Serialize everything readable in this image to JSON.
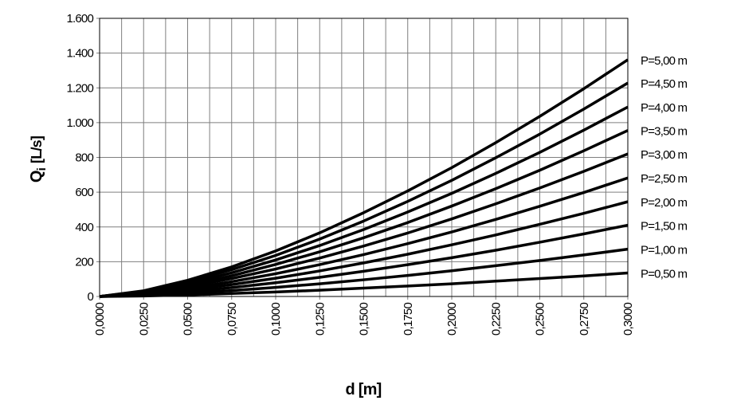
{
  "chart_data": {
    "type": "line",
    "ylabel": {
      "symbol": "Q",
      "subscript": "i",
      "unit": "[L/s]"
    },
    "xlabel": "d [m]",
    "x": [
      0,
      0.025,
      0.05,
      0.075,
      0.1,
      0.125,
      0.15,
      0.175,
      0.2,
      0.225,
      0.25,
      0.275,
      0.3
    ],
    "xlim": [
      0,
      0.3
    ],
    "xticks": [
      {
        "value": 0,
        "label": "0,0000"
      },
      {
        "value": 0.025,
        "label": "0,0250"
      },
      {
        "value": 0.05,
        "label": "0,0500"
      },
      {
        "value": 0.075,
        "label": "0,0750"
      },
      {
        "value": 0.1,
        "label": "0,1000"
      },
      {
        "value": 0.125,
        "label": "0,1250"
      },
      {
        "value": 0.15,
        "label": "0,1500"
      },
      {
        "value": 0.175,
        "label": "0,1750"
      },
      {
        "value": 0.2,
        "label": "0,2000"
      },
      {
        "value": 0.225,
        "label": "0,2250"
      },
      {
        "value": 0.25,
        "label": "0,2500"
      },
      {
        "value": 0.275,
        "label": "0,2750"
      },
      {
        "value": 0.3,
        "label": "0,3000"
      }
    ],
    "xminor_grid": [
      0.0125,
      0.0375,
      0.0625,
      0.0875,
      0.1125,
      0.1375,
      0.1625,
      0.1875,
      0.2125,
      0.2375,
      0.2625,
      0.2875
    ],
    "ylim": [
      0,
      1600
    ],
    "yticks": [
      0,
      200,
      400,
      600,
      800,
      {
        "value": 1000,
        "label": "1.000"
      },
      {
        "value": 1200,
        "label": "1.200"
      },
      {
        "value": 1400,
        "label": "1.400"
      },
      {
        "value": 1600,
        "label": "1.600"
      }
    ],
    "grid": true,
    "series": [
      {
        "name": "P=0,50 m",
        "color": "#000000",
        "values": [
          0,
          3,
          9,
          17,
          26,
          36,
          48,
          60,
          73,
          88,
          103,
          118,
          135
        ]
      },
      {
        "name": "P=1,00 m",
        "color": "#000000",
        "values": [
          0,
          7,
          19,
          34,
          52,
          73,
          96,
          121,
          148,
          177,
          207,
          239,
          272
        ]
      },
      {
        "name": "P=1,50 m",
        "color": "#000000",
        "values": [
          0,
          10,
          28,
          51,
          79,
          110,
          145,
          183,
          223,
          266,
          312,
          360,
          410
        ]
      },
      {
        "name": "P=2,00 m",
        "color": "#000000",
        "values": [
          0,
          13,
          37,
          68,
          105,
          147,
          193,
          243,
          297,
          354,
          415,
          478,
          545
        ]
      },
      {
        "name": "P=2,50 m",
        "color": "#000000",
        "values": [
          0,
          16,
          46,
          85,
          131,
          183,
          241,
          304,
          371,
          443,
          519,
          598,
          682
        ]
      },
      {
        "name": "P=3,00 m",
        "color": "#000000",
        "values": [
          0,
          20,
          56,
          103,
          158,
          221,
          290,
          365,
          446,
          533,
          624,
          720,
          820
        ]
      },
      {
        "name": "P=3,50 m",
        "color": "#000000",
        "values": [
          0,
          23,
          65,
          119,
          184,
          257,
          338,
          425,
          520,
          620,
          726,
          838,
          955
        ]
      },
      {
        "name": "P=4,00 m",
        "color": "#000000",
        "values": [
          0,
          26,
          74,
          136,
          210,
          293,
          385,
          486,
          593,
          708,
          829,
          957,
          1090
        ]
      },
      {
        "name": "P=4,50 m",
        "color": "#000000",
        "values": [
          0,
          30,
          84,
          154,
          236,
          330,
          434,
          547,
          668,
          798,
          934,
          1078,
          1228
        ]
      },
      {
        "name": "P=5,00 m",
        "color": "#000000",
        "values": [
          0,
          33,
          93,
          170,
          262,
          366,
          482,
          607,
          741,
          885,
          1036,
          1195,
          1362
        ]
      }
    ]
  }
}
